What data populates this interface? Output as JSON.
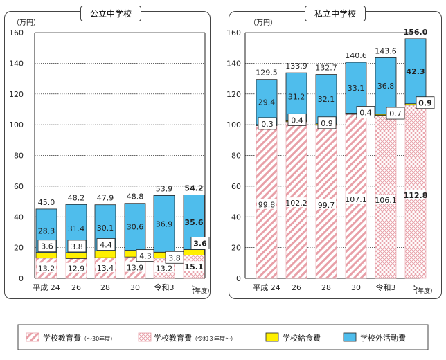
{
  "unit_label": "（万円）",
  "year_unit": "(年度)",
  "legend": [
    {
      "label": "学校教育費",
      "suffix": "（〜30年度）",
      "pattern": "hatch-old"
    },
    {
      "label": "学校教育費",
      "suffix": "（令和３年度〜）",
      "pattern": "hatch-new"
    },
    {
      "label": "学校給食費",
      "suffix": "",
      "pattern": "yellow"
    },
    {
      "label": "学校外活動費",
      "suffix": "",
      "pattern": "blue"
    }
  ],
  "colors": {
    "activity": "#4FBDEC",
    "lunch": "#FFF000",
    "hatch": "#E8A0A8",
    "grid": "#333333"
  },
  "chart_data": [
    {
      "type": "bar",
      "title": "公立中学校",
      "stacked": true,
      "categories": [
        "平成 24",
        "26",
        "28",
        "30",
        "令和3",
        "5"
      ],
      "ylim": [
        0,
        160
      ],
      "yticks": [
        0,
        20,
        40,
        60,
        80,
        100,
        120,
        140,
        160
      ],
      "grid": true,
      "series": [
        {
          "name": "学校教育費",
          "values": [
            13.2,
            12.9,
            13.4,
            13.9,
            13.2,
            15.1
          ]
        },
        {
          "name": "学校給食費",
          "values": [
            3.6,
            3.8,
            4.4,
            4.3,
            3.8,
            3.6
          ]
        },
        {
          "name": "学校外活動費",
          "values": [
            28.3,
            31.4,
            30.1,
            30.6,
            36.9,
            35.6
          ]
        }
      ],
      "totals": [
        45.0,
        48.2,
        47.9,
        48.8,
        53.9,
        54.2
      ],
      "labels": {
        "education": [
          "13.2",
          "12.9",
          "13.4",
          "13.9",
          "13.2",
          "15.1"
        ],
        "lunch": [
          "3.6",
          "3.8",
          "4.4",
          "4.3",
          "3.8",
          "3.6"
        ],
        "activity": [
          "28.3",
          "31.4",
          "30.1",
          "30.6",
          "36.9",
          "35.6"
        ],
        "totals": [
          "45.0",
          "48.2",
          "47.9",
          "48.8",
          "53.9",
          "54.2"
        ]
      }
    },
    {
      "type": "bar",
      "title": "私立中学校",
      "stacked": true,
      "categories": [
        "平成 24",
        "26",
        "28",
        "30",
        "令和3",
        "5"
      ],
      "ylim": [
        0,
        160
      ],
      "yticks": [
        0,
        20,
        40,
        60,
        80,
        100,
        120,
        140,
        160
      ],
      "grid": true,
      "series": [
        {
          "name": "学校教育費",
          "values": [
            99.8,
            102.2,
            99.7,
            107.1,
            106.1,
            112.8
          ]
        },
        {
          "name": "学校給食費",
          "values": [
            0.3,
            0.4,
            0.9,
            0.4,
            0.7,
            0.9
          ]
        },
        {
          "name": "学校外活動費",
          "values": [
            29.4,
            31.2,
            32.1,
            33.1,
            36.8,
            42.3
          ]
        }
      ],
      "totals": [
        129.5,
        133.9,
        132.7,
        140.6,
        143.6,
        156.0
      ],
      "labels": {
        "education": [
          "99.8",
          "102.2",
          "99.7",
          "107.1",
          "106.1",
          "112.8"
        ],
        "lunch": [
          "0.3",
          "0.4",
          "0.9",
          "0.4",
          "0.7",
          "0.9"
        ],
        "activity": [
          "29.4",
          "31.2",
          "32.1",
          "33.1",
          "36.8",
          "42.3"
        ],
        "totals": [
          "129.5",
          "133.9",
          "132.7",
          "140.6",
          "143.6",
          "156.0"
        ]
      }
    }
  ]
}
